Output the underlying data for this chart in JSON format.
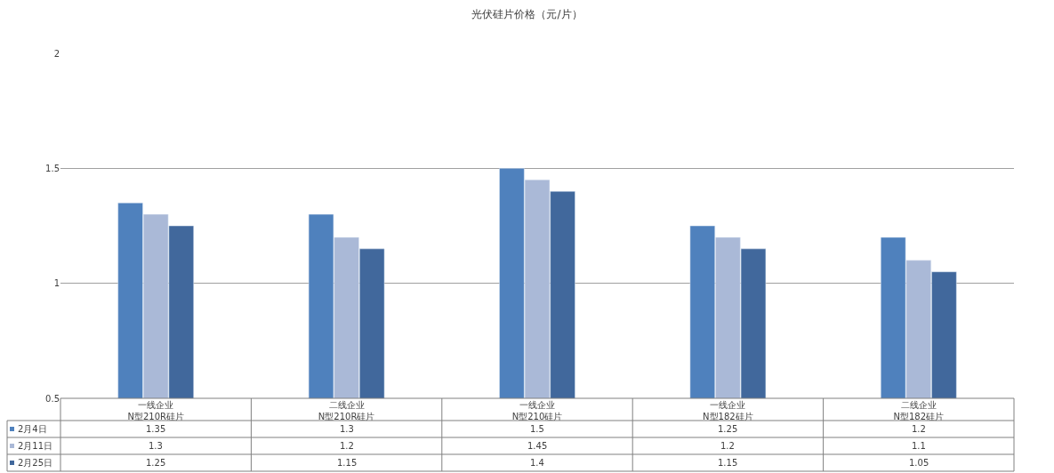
{
  "chart_data": {
    "type": "bar",
    "title": "光伏硅片价格（元/片）",
    "categories": [
      "一线企业\nN型210R硅片",
      "二线企业\nN型210R硅片",
      "一线企业\nN型210硅片",
      "一线企业\nN型182硅片",
      "二线企业\nN型182硅片"
    ],
    "series": [
      {
        "name": "2月4日",
        "color": "#4f81bd",
        "values": [
          1.35,
          1.3,
          1.5,
          1.25,
          1.2
        ]
      },
      {
        "name": "2月11日",
        "color": "#aab9d7",
        "values": [
          1.3,
          1.2,
          1.45,
          1.2,
          1.1
        ]
      },
      {
        "name": "2月25日",
        "color": "#41689c",
        "values": [
          1.25,
          1.15,
          1.4,
          1.15,
          1.05
        ]
      }
    ],
    "ylim": [
      0.5,
      2
    ],
    "yticks": [
      0.5,
      1,
      1.5,
      2
    ],
    "grid": "y",
    "data_labels": true,
    "legend": "bottom left"
  }
}
